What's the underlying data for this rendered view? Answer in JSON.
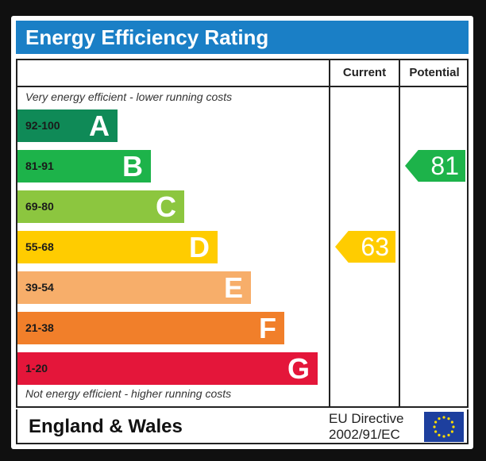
{
  "title": "Energy Efficiency Rating",
  "columns": {
    "current": "Current",
    "potential": "Potential"
  },
  "top_note": "Very energy efficient - lower running costs",
  "bottom_note": "Not energy efficient - higher running costs",
  "footer": {
    "region": "England & Wales",
    "directive_line1": "EU Directive",
    "directive_line2": "2002/91/EC"
  },
  "chart_data": {
    "type": "bar",
    "bands": [
      {
        "letter": "A",
        "range": "92-100",
        "color": "#0f8a57"
      },
      {
        "letter": "B",
        "range": "81-91",
        "color": "#1db34a"
      },
      {
        "letter": "C",
        "range": "69-80",
        "color": "#8cc63f"
      },
      {
        "letter": "D",
        "range": "55-68",
        "color": "#ffcc00"
      },
      {
        "letter": "E",
        "range": "39-54",
        "color": "#f7ae6a"
      },
      {
        "letter": "F",
        "range": "21-38",
        "color": "#f17f2a"
      },
      {
        "letter": "G",
        "range": "1-20",
        "color": "#e4163a"
      }
    ],
    "current": {
      "value": 63,
      "color": "#ffcc00"
    },
    "potential": {
      "value": 81,
      "color": "#1db34a"
    }
  }
}
